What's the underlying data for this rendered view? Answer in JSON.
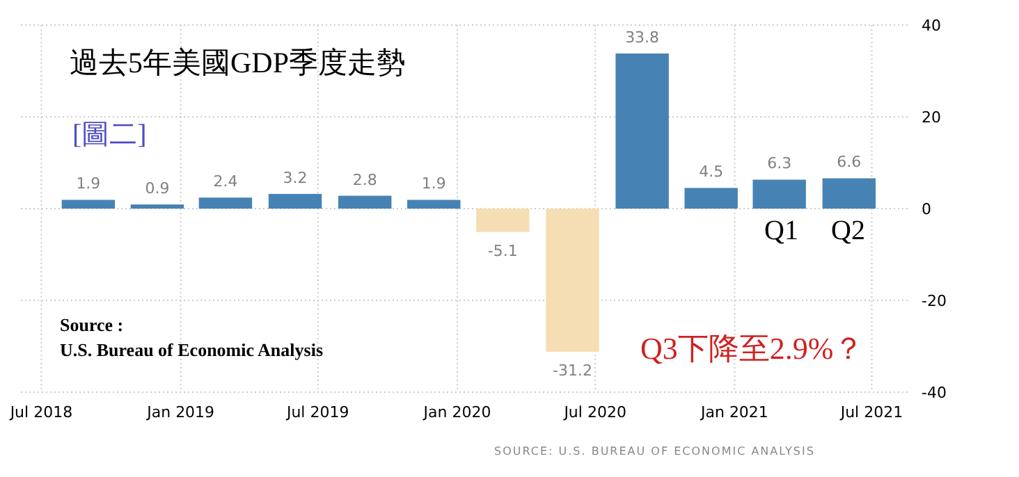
{
  "chart_data": {
    "type": "bar",
    "title": "過去5年美國GDP季度走勢",
    "x": [
      "2018-09",
      "2018-12",
      "2019-03",
      "2019-06",
      "2019-09",
      "2019-12",
      "2020-03",
      "2020-06",
      "2020-09",
      "2020-12",
      "2021-03",
      "2021-06"
    ],
    "values": [
      1.9,
      0.9,
      2.4,
      3.2,
      2.8,
      1.9,
      -5.1,
      -31.2,
      33.8,
      4.5,
      6.3,
      6.6
    ],
    "colors": [
      "#4682b4",
      "#4682b4",
      "#4682b4",
      "#4682b4",
      "#4682b4",
      "#4682b4",
      "#f5deb3",
      "#f5deb3",
      "#4682b4",
      "#4682b4",
      "#4682b4",
      "#4682b4"
    ],
    "data_labels": true,
    "xlim": [
      "2018-06-04",
      "2021-08-21"
    ],
    "xticks": [
      {
        "value": "2018-07",
        "label": "Jul 2018"
      },
      {
        "value": "2019-01",
        "label": "Jan 2019"
      },
      {
        "value": "2019-07",
        "label": "Jul 2019"
      },
      {
        "value": "2020-01",
        "label": "Jan 2020"
      },
      {
        "value": "2020-07",
        "label": "Jul 2020"
      },
      {
        "value": "2021-01",
        "label": "Jan 2021"
      },
      {
        "value": "2021-07",
        "label": "Jul 2021"
      }
    ],
    "ylim": [
      -40,
      40
    ],
    "yticks": [
      40,
      20,
      0,
      -20,
      -40
    ],
    "grid": true,
    "annotations": [
      "[圖二]",
      "Q1",
      "Q2",
      "Q3下降至2.9%？",
      "Source :",
      "U.S. Bureau of Economic Analysis",
      "SOURCE: U.S. BUREAU OF ECONOMIC ANALYSIS"
    ]
  }
}
